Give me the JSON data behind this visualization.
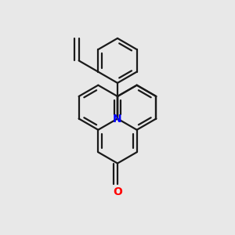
{
  "bg_color": "#e8e8e8",
  "bond_color": "#1a1a1a",
  "N_color": "#0000ff",
  "O_color": "#ff0000",
  "line_width": 1.6,
  "dbo": 0.015,
  "s": 0.095
}
